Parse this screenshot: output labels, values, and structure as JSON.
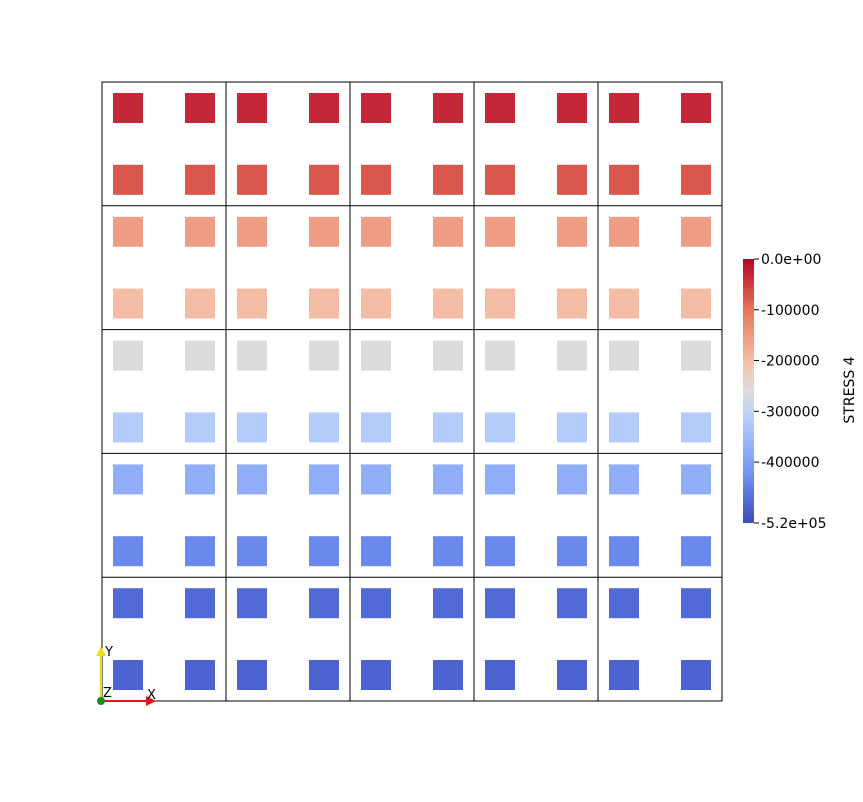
{
  "chart_data": {
    "type": "heatmap",
    "title": "",
    "colorbar": {
      "title": "STRESS 4",
      "range": [
        -520000,
        0
      ],
      "ticks": [
        {
          "value": 0,
          "label": "0.0e+00"
        },
        {
          "value": -100000,
          "label": "-100000"
        },
        {
          "value": -200000,
          "label": "-200000"
        },
        {
          "value": -300000,
          "label": "-300000"
        },
        {
          "value": -400000,
          "label": "-400000"
        },
        {
          "value": -520000,
          "label": "-5.2e+05"
        }
      ],
      "colormap": "coolwarm",
      "colormap_stops": [
        {
          "value": 0,
          "color": "#b40426"
        },
        {
          "value": -104000,
          "color": "#e9785d"
        },
        {
          "value": -208000,
          "color": "#f5c4ac"
        },
        {
          "value": -260000,
          "color": "#dddcdc"
        },
        {
          "value": -312000,
          "color": "#b9d0f9"
        },
        {
          "value": -416000,
          "color": "#7597f6"
        },
        {
          "value": -520000,
          "color": "#3b4cc0"
        }
      ]
    },
    "mesh": {
      "columns": 5,
      "rows": 5
    },
    "points": {
      "columns_per_row": 10,
      "rows": [
        {
          "value": -32000
        },
        {
          "value": -74000
        },
        {
          "value": -155000
        },
        {
          "value": -197000
        },
        {
          "value": -260000
        },
        {
          "value": -320000
        },
        {
          "value": -375000
        },
        {
          "value": -435000
        },
        {
          "value": -478000
        },
        {
          "value": -490000
        }
      ]
    },
    "grid": true,
    "legend_position": "right"
  },
  "orientation_axes": {
    "x_label": "X",
    "y_label": "Y",
    "z_label": "Z",
    "x_color": "#e8101a",
    "y_color": "#e8e01a",
    "z_color": "#1a8a1a"
  }
}
